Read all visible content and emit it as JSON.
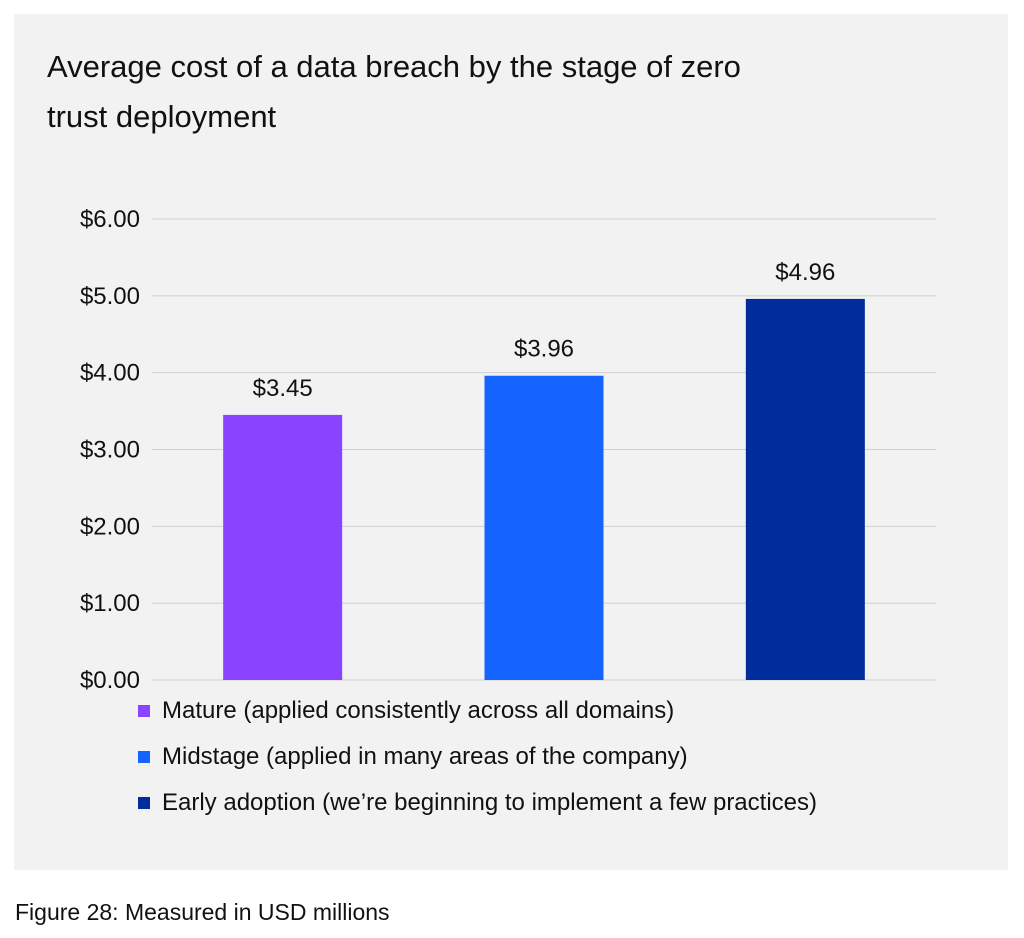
{
  "chart_data": {
    "type": "bar",
    "title": "Average cost of a data breach by the stage of zero trust deployment",
    "categories": [
      "Mature (applied consistently across all domains)",
      "Midstage (applied in many areas of the company)",
      "Early adoption (we’re beginning to implement a few practices)"
    ],
    "values": [
      3.45,
      3.96,
      4.96
    ],
    "value_labels": [
      "$3.45",
      "$3.96",
      "$4.96"
    ],
    "colors": [
      "#8a43ff",
      "#1664ff",
      "#002d9c"
    ],
    "ylim": [
      0,
      6
    ],
    "yticks": [
      "$0.00",
      "$1.00",
      "$2.00",
      "$3.00",
      "$4.00",
      "$5.00",
      "$6.00"
    ],
    "xlabel": "",
    "ylabel": "",
    "grid": true,
    "legend_position": "bottom"
  },
  "caption": "Figure 28: Measured in USD millions"
}
